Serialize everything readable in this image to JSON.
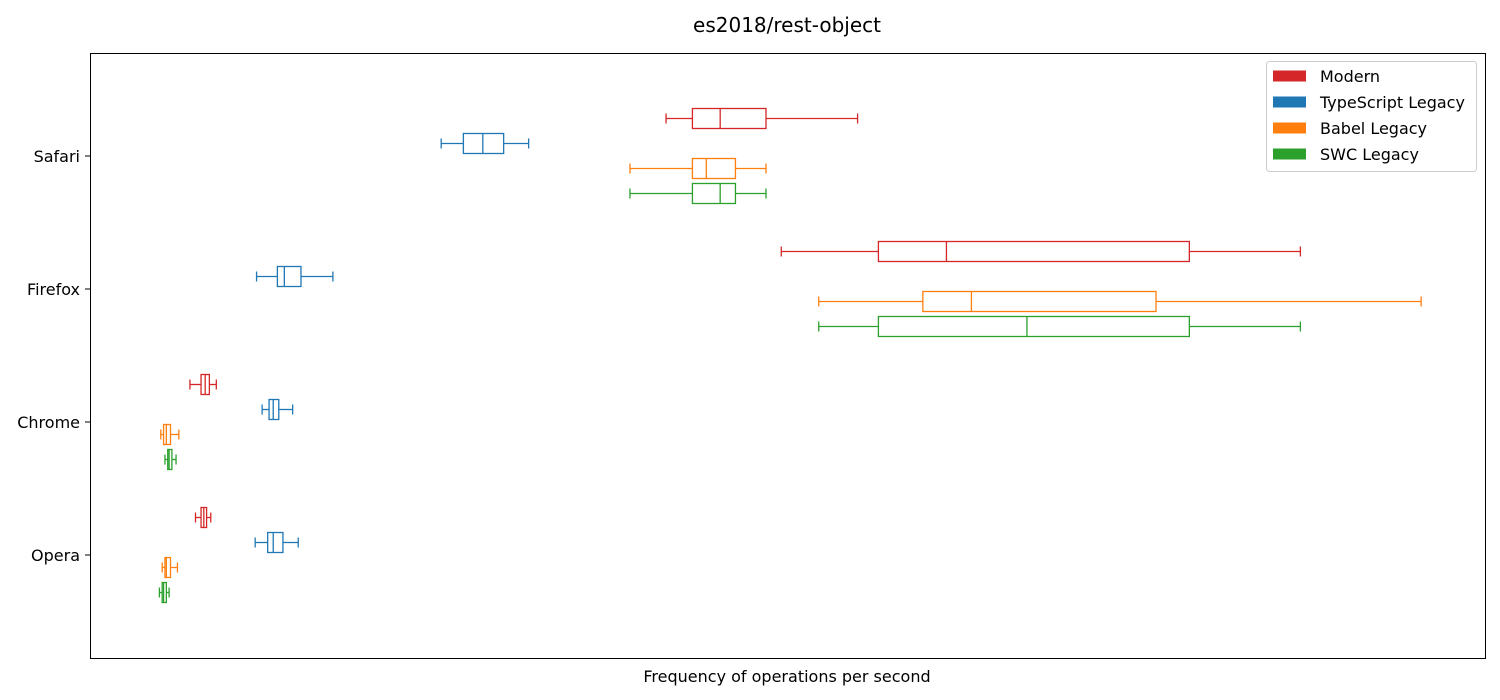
{
  "chart_data": {
    "type": "boxplot",
    "title": "es2018/rest-object",
    "xlabel": "Frequency of operations per second",
    "ylabel": "",
    "x_ticks_shown": false,
    "xlim": [
      -5,
      1000
    ],
    "grid": false,
    "legend_position": "top-right",
    "categories": [
      "Safari",
      "Firefox",
      "Chrome",
      "Opera"
    ],
    "series": [
      {
        "name": "Modern",
        "color": "#d62728",
        "boxes": [
          {
            "category": "Safari",
            "whislo": 410,
            "q1": 429,
            "med": 449,
            "q3": 482,
            "whishi": 548
          },
          {
            "category": "Firefox",
            "whislo": 493,
            "q1": 563,
            "med": 612,
            "q3": 787,
            "whishi": 867
          },
          {
            "category": "Chrome",
            "whislo": 67,
            "q1": 75,
            "med": 78,
            "q3": 81,
            "whishi": 86
          },
          {
            "category": "Opera",
            "whislo": 71,
            "q1": 75,
            "med": 77,
            "q3": 79,
            "whishi": 82
          }
        ]
      },
      {
        "name": "TypeScript Legacy",
        "color": "#1f77b4",
        "boxes": [
          {
            "category": "Safari",
            "whislo": 248,
            "q1": 264,
            "med": 278,
            "q3": 293,
            "whishi": 311
          },
          {
            "category": "Firefox",
            "whislo": 115,
            "q1": 130,
            "med": 135,
            "q3": 147,
            "whishi": 170
          },
          {
            "category": "Chrome",
            "whislo": 119,
            "q1": 124,
            "med": 127,
            "q3": 131,
            "whishi": 141
          },
          {
            "category": "Opera",
            "whislo": 114,
            "q1": 123,
            "med": 127,
            "q3": 134,
            "whishi": 145
          }
        ]
      },
      {
        "name": "Babel Legacy",
        "color": "#ff7f0e",
        "boxes": [
          {
            "category": "Safari",
            "whislo": 384,
            "q1": 429,
            "med": 439,
            "q3": 460,
            "whishi": 482
          },
          {
            "category": "Firefox",
            "whislo": 520,
            "q1": 595,
            "med": 630,
            "q3": 763,
            "whishi": 954
          },
          {
            "category": "Chrome",
            "whislo": 46,
            "q1": 48,
            "med": 50,
            "q3": 53,
            "whishi": 59
          },
          {
            "category": "Opera",
            "whislo": 47,
            "q1": 49,
            "med": 50,
            "q3": 53,
            "whishi": 58
          }
        ]
      },
      {
        "name": "SWC Legacy",
        "color": "#2ca02c",
        "boxes": [
          {
            "category": "Safari",
            "whislo": 384,
            "q1": 429,
            "med": 449,
            "q3": 460,
            "whishi": 482
          },
          {
            "category": "Firefox",
            "whislo": 520,
            "q1": 563,
            "med": 670,
            "q3": 787,
            "whishi": 867
          },
          {
            "category": "Chrome",
            "whislo": 49,
            "q1": 51,
            "med": 52,
            "q3": 54,
            "whishi": 57
          },
          {
            "category": "Opera",
            "whislo": 45,
            "q1": 47,
            "med": 48,
            "q3": 50,
            "whishi": 52
          }
        ]
      }
    ]
  }
}
